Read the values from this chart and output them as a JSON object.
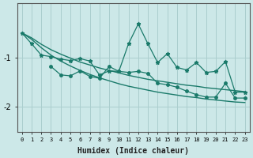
{
  "xlabel": "Humidex (Indice chaleur)",
  "bg_color": "#cce8e8",
  "grid_color": "#aacece",
  "line_color": "#1a7a6a",
  "x_ticks": [
    0,
    1,
    2,
    3,
    4,
    5,
    6,
    7,
    8,
    9,
    10,
    11,
    12,
    13,
    14,
    15,
    16,
    17,
    18,
    19,
    20,
    21,
    22,
    23
  ],
  "xlim": [
    -0.5,
    23.5
  ],
  "ylim": [
    -2.5,
    0.1
  ],
  "yticks": [
    -2,
    -1
  ],
  "line1_x": [
    0,
    1,
    2,
    3,
    4,
    5,
    6,
    7,
    8,
    9,
    10,
    11,
    12,
    13,
    14,
    15,
    16,
    17,
    18,
    19,
    20,
    21,
    22,
    23
  ],
  "line1_y": [
    -0.5,
    -0.6,
    -0.73,
    -0.84,
    -0.93,
    -1.01,
    -1.09,
    -1.15,
    -1.21,
    -1.26,
    -1.31,
    -1.36,
    -1.4,
    -1.44,
    -1.47,
    -1.5,
    -1.53,
    -1.56,
    -1.58,
    -1.61,
    -1.63,
    -1.65,
    -1.67,
    -1.69
  ],
  "line2_x": [
    0,
    1,
    2,
    3,
    4,
    5,
    6,
    7,
    8,
    9,
    10,
    11,
    12,
    13,
    14,
    15,
    16,
    17,
    18,
    19,
    20,
    21,
    22,
    23
  ],
  "line2_y": [
    -0.5,
    -0.63,
    -0.8,
    -0.95,
    -1.07,
    -1.17,
    -1.26,
    -1.34,
    -1.41,
    -1.47,
    -1.53,
    -1.58,
    -1.62,
    -1.66,
    -1.7,
    -1.73,
    -1.76,
    -1.79,
    -1.81,
    -1.84,
    -1.86,
    -1.88,
    -1.9,
    -1.91
  ],
  "line3_x": [
    0,
    1,
    2,
    3,
    4,
    5,
    6,
    7,
    8,
    9,
    10,
    11,
    12,
    13,
    14,
    15,
    16,
    17,
    18,
    19,
    20,
    21,
    22,
    23
  ],
  "line3_y": [
    -0.5,
    -0.72,
    -0.95,
    -0.98,
    -1.03,
    -1.06,
    -1.02,
    -1.07,
    -1.35,
    -1.27,
    -1.28,
    -0.72,
    -0.32,
    -0.72,
    -1.1,
    -0.92,
    -1.2,
    -1.25,
    -1.1,
    -1.3,
    -1.28,
    -1.08,
    -1.7,
    -1.7
  ],
  "line4_x": [
    3,
    4,
    5,
    6,
    7,
    8,
    9,
    10,
    11,
    12,
    13,
    14,
    15,
    16,
    17,
    18,
    19,
    20,
    21,
    22,
    23
  ],
  "line4_y": [
    -1.18,
    -1.35,
    -1.37,
    -1.27,
    -1.38,
    -1.42,
    -1.18,
    -1.28,
    -1.3,
    -1.28,
    -1.32,
    -1.52,
    -1.55,
    -1.6,
    -1.68,
    -1.75,
    -1.8,
    -1.8,
    -1.52,
    -1.82,
    -1.82
  ]
}
